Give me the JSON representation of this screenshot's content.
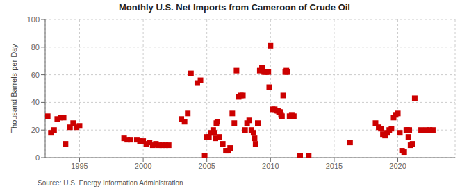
{
  "chart_data": {
    "type": "scatter",
    "title": "Monthly U.S. Net Imports from Cameroon of Crude Oil",
    "ylabel": "Thousand Barrels per Day",
    "annotations": [
      "Source: U.S. Energy Information Administration"
    ],
    "color": "#cc0000",
    "marker": "square",
    "grid": true,
    "xlim": [
      1992.3,
      2024.5
    ],
    "xticks": [
      1995,
      2000,
      2005,
      2010,
      2015,
      2020
    ],
    "ylim": [
      0,
      100
    ],
    "yticks": [
      0,
      20,
      40,
      60,
      80,
      100
    ],
    "x": [
      1992.5,
      1992.75,
      1993.0,
      1993.25,
      1993.5,
      1993.75,
      1993.9,
      1994.25,
      1994.5,
      1994.75,
      1995.0,
      1998.5,
      1998.75,
      1999.0,
      1999.5,
      1999.75,
      2000.0,
      2000.25,
      2000.5,
      2000.75,
      2001.0,
      2001.25,
      2001.5,
      2001.75,
      2002.0,
      2003.0,
      2003.25,
      2003.5,
      2003.75,
      2004.25,
      2004.5,
      2004.83,
      2005.0,
      2005.16,
      2005.33,
      2005.5,
      2005.58,
      2005.67,
      2005.75,
      2005.83,
      2006.0,
      2006.25,
      2006.5,
      2006.67,
      2006.83,
      2007.0,
      2007.16,
      2007.33,
      2007.5,
      2007.67,
      2007.83,
      2008.0,
      2008.16,
      2008.33,
      2008.5,
      2008.67,
      2008.75,
      2008.83,
      2009.0,
      2009.16,
      2009.33,
      2009.5,
      2009.67,
      2009.83,
      2009.9,
      2010.0,
      2010.16,
      2010.33,
      2010.5,
      2010.58,
      2010.67,
      2010.75,
      2010.83,
      2010.9,
      2011.0,
      2011.16,
      2011.25,
      2011.33,
      2011.5,
      2011.67,
      2011.83,
      2012.33,
      2013.0,
      2016.25,
      2018.25,
      2018.5,
      2018.67,
      2018.83,
      2019.0,
      2019.16,
      2019.33,
      2019.5,
      2019.67,
      2019.83,
      2020.0,
      2020.16,
      2020.33,
      2020.5,
      2020.67,
      2020.75,
      2020.83,
      2020.9,
      2021.0,
      2021.16,
      2021.33,
      2021.83,
      2022.25,
      2022.5,
      2022.75
    ],
    "values": [
      30,
      18,
      20,
      28,
      29,
      29,
      10,
      22,
      25,
      22,
      23,
      14,
      13,
      13,
      13,
      12,
      12,
      10,
      11,
      9,
      10,
      9,
      9,
      9,
      9,
      28,
      26,
      32,
      61,
      54,
      56,
      1,
      15,
      15,
      18,
      20,
      18,
      14,
      25,
      26,
      15,
      10,
      5,
      5,
      7,
      32,
      25,
      63,
      44,
      45,
      45,
      20,
      25,
      27,
      20,
      18,
      14,
      10,
      25,
      63,
      65,
      62,
      62,
      62,
      51,
      81,
      35,
      35,
      34,
      34,
      33,
      33,
      31,
      30,
      45,
      62,
      63,
      62,
      30,
      31,
      30,
      1,
      1,
      11,
      25,
      22,
      21,
      17,
      16,
      18,
      20,
      21,
      29,
      31,
      32,
      18,
      5,
      4,
      20,
      20,
      15,
      20,
      9,
      10,
      43,
      20,
      20,
      20,
      20
    ]
  }
}
